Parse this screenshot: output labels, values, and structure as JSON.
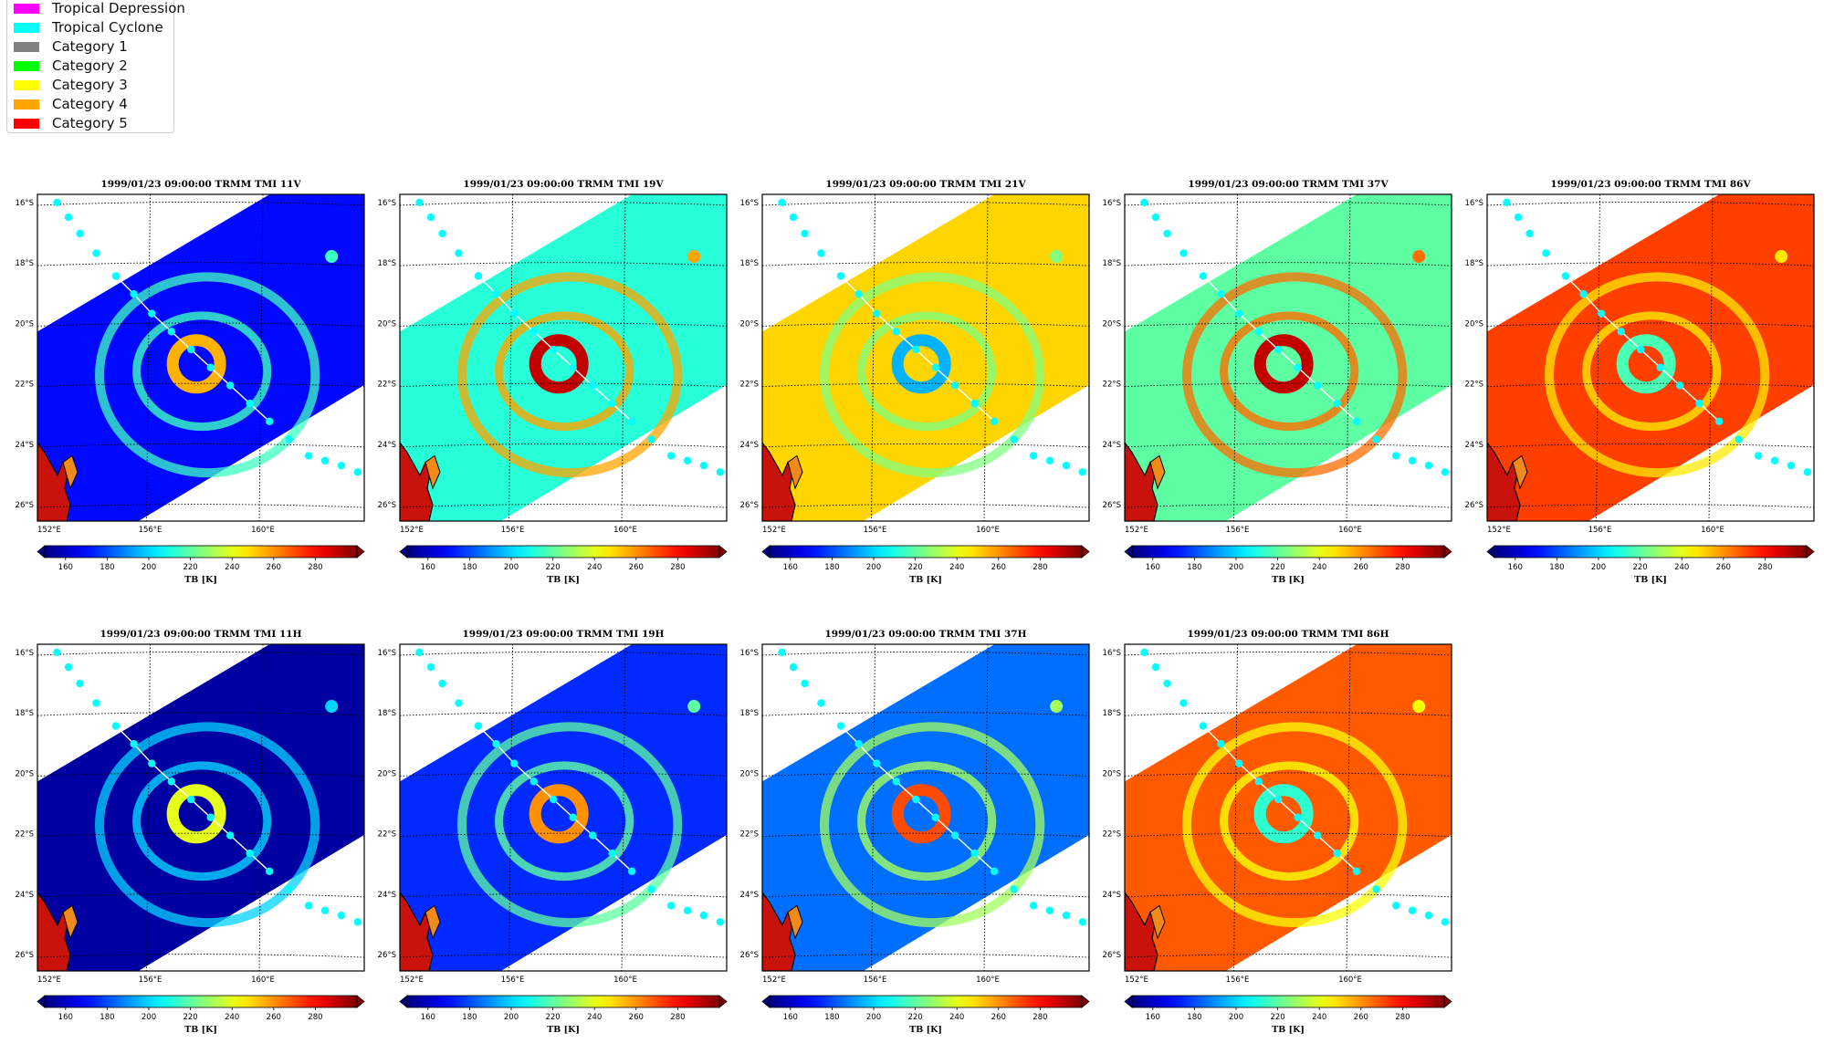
{
  "legend": {
    "items": [
      {
        "label": "Tropical Depression",
        "color": "#ff00ff"
      },
      {
        "label": "Tropical Cyclone",
        "color": "#00ffff"
      },
      {
        "label": "Category 1",
        "color": "#808080"
      },
      {
        "label": "Category 2",
        "color": "#00ff00"
      },
      {
        "label": "Category 3",
        "color": "#ffff00"
      },
      {
        "label": "Category 4",
        "color": "#ffa500"
      },
      {
        "label": "Category 5",
        "color": "#ff0000"
      }
    ]
  },
  "lat_labels": [
    "16°S",
    "18°S",
    "20°S",
    "22°S",
    "24°S",
    "26°S"
  ],
  "lon_labels": [
    "152°E",
    "156°E",
    "160°E"
  ],
  "colorbar": {
    "ticks": [
      "160",
      "180",
      "200",
      "220",
      "240",
      "260",
      "280"
    ],
    "label": "TB [K]",
    "vmin": 150,
    "vmax": 300
  },
  "panels": [
    {
      "title": "1999/01/23 09:00:00  TRMM TMI 11V",
      "channel": "11V",
      "bg_tb": 170
    },
    {
      "title": "1999/01/23 09:00:00  TRMM TMI 19V",
      "channel": "19V",
      "bg_tb": 212
    },
    {
      "title": "1999/01/23 09:00:00  TRMM TMI 21V",
      "channel": "21V",
      "bg_tb": 250
    },
    {
      "title": "1999/01/23 09:00:00  TRMM TMI 37V",
      "channel": "37V",
      "bg_tb": 220
    },
    {
      "title": "1999/01/23 09:00:00  TRMM TMI 86V",
      "channel": "86V",
      "bg_tb": 272
    },
    {
      "title": "1999/01/23 09:00:00  TRMM TMI 11H",
      "channel": "11H",
      "bg_tb": 155
    },
    {
      "title": "1999/01/23 09:00:00  TRMM TMI 19H",
      "channel": "19H",
      "bg_tb": 175
    },
    {
      "title": "1999/01/23 09:00:00  TRMM TMI 37H",
      "channel": "37H",
      "bg_tb": 185
    },
    {
      "title": "1999/01/23 09:00:00  TRMM TMI 86H",
      "channel": "86H",
      "bg_tb": 268
    }
  ]
}
